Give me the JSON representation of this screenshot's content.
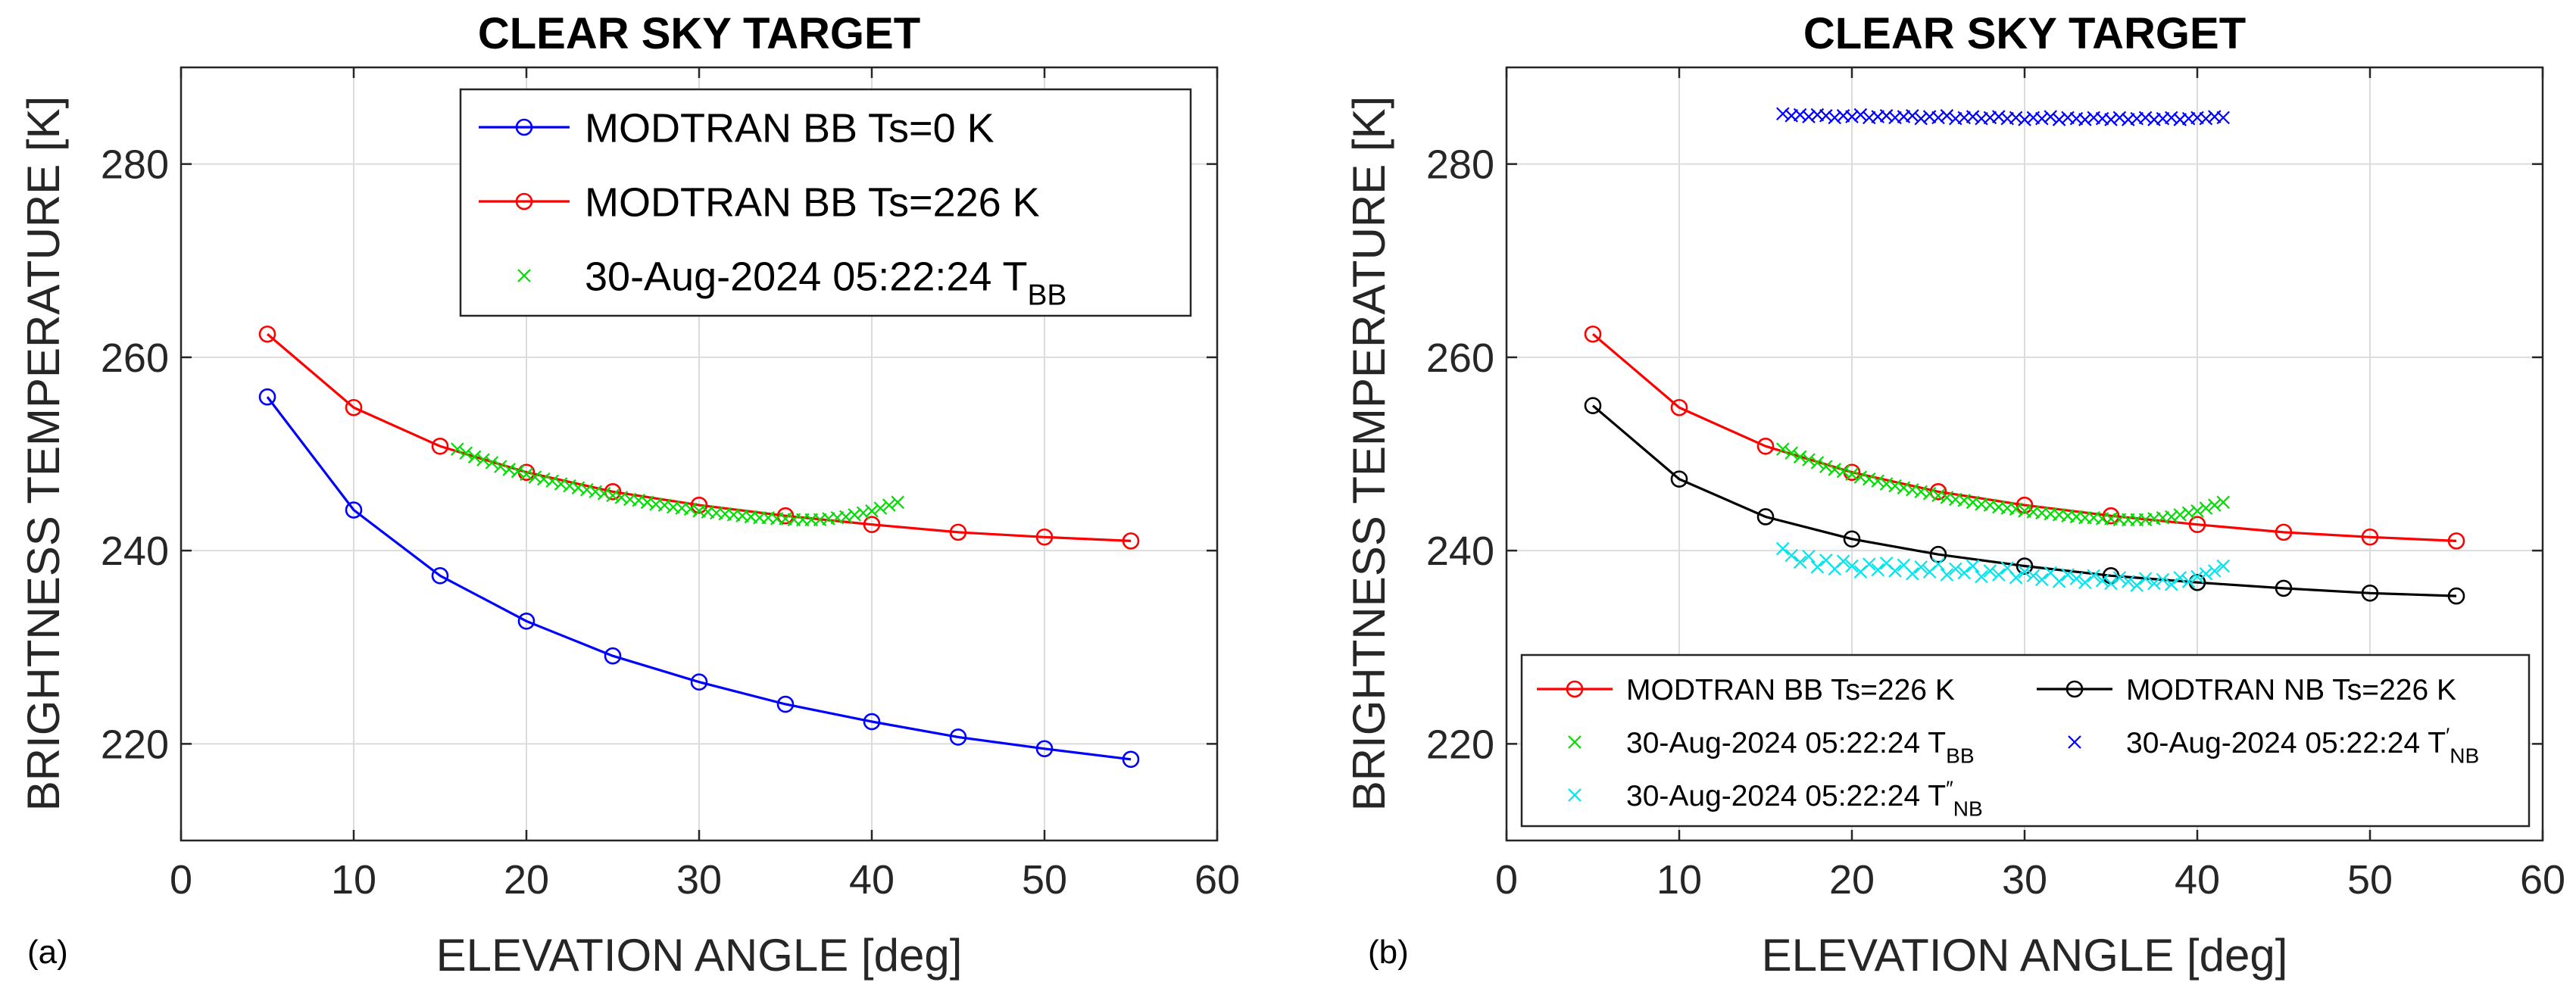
{
  "chart_data": [
    {
      "type": "line",
      "panel_label": "(a)",
      "title": "CLEAR SKY TARGET",
      "xlabel": "ELEVATION ANGLE [deg]",
      "ylabel": "BRIGHTNESS TEMPERATURE [K]",
      "xlim": [
        0,
        60
      ],
      "ylim": [
        210,
        290
      ],
      "xticks": [
        0,
        10,
        20,
        30,
        40,
        50,
        60
      ],
      "yticks": [
        220,
        240,
        260,
        280
      ],
      "grid": true,
      "legend_position": "top-right",
      "legend_columns": 1,
      "series": [
        {
          "name": "MODTRAN BB Ts=0 K",
          "legend_main": "MODTRAN BB Ts=0 K",
          "color": "#0000ff",
          "marker": "circle",
          "line": true,
          "x": [
            5,
            10,
            15,
            20,
            25,
            30,
            35,
            40,
            45,
            50,
            55
          ],
          "y": [
            255.9,
            244.2,
            237.4,
            232.7,
            229.1,
            226.4,
            224.1,
            222.3,
            220.7,
            219.5,
            218.4
          ]
        },
        {
          "name": "MODTRAN BB Ts=226 K",
          "legend_main": "MODTRAN BB Ts=226 K",
          "color": "#ff0000",
          "marker": "circle",
          "line": true,
          "x": [
            5,
            10,
            15,
            20,
            25,
            30,
            35,
            40,
            45,
            50,
            55
          ],
          "y": [
            262.4,
            254.8,
            250.8,
            248.1,
            246.1,
            244.7,
            243.6,
            242.7,
            241.9,
            241.4,
            241.0
          ]
        },
        {
          "name": "30-Aug-2024 05:22:24 T_BB",
          "legend_main": "30-Aug-2024 05:22:24 T",
          "legend_sub": "BB",
          "legend_sup": "",
          "color": "#00dd00",
          "marker": "x",
          "line": false,
          "x": [
            16.0,
            16.5,
            17.0,
            17.5,
            18.0,
            18.5,
            19.0,
            19.5,
            20.0,
            20.5,
            21.0,
            21.5,
            22.0,
            22.5,
            23.0,
            23.5,
            24.0,
            24.5,
            25.0,
            25.5,
            26.0,
            26.5,
            27.0,
            27.5,
            28.0,
            28.5,
            29.0,
            29.5,
            30.0,
            30.5,
            31.0,
            31.5,
            32.0,
            32.5,
            33.0,
            33.5,
            34.0,
            34.5,
            35.0,
            35.5,
            36.0,
            36.5,
            37.0,
            37.5,
            38.0,
            38.5,
            39.0,
            39.5,
            40.0,
            40.5,
            41.0,
            41.5
          ],
          "y": [
            250.5,
            250.1,
            249.7,
            249.4,
            249.1,
            248.7,
            248.4,
            248.2,
            247.9,
            247.6,
            247.4,
            247.2,
            246.9,
            246.7,
            246.5,
            246.3,
            246.1,
            245.9,
            245.7,
            245.5,
            245.3,
            245.2,
            245.0,
            244.8,
            244.7,
            244.5,
            244.4,
            244.3,
            244.1,
            244.0,
            243.9,
            243.8,
            243.7,
            243.6,
            243.5,
            243.4,
            243.4,
            243.3,
            243.3,
            243.2,
            243.2,
            243.2,
            243.2,
            243.3,
            243.4,
            243.5,
            243.7,
            243.9,
            244.1,
            244.4,
            244.7,
            245.0
          ]
        }
      ]
    },
    {
      "type": "line",
      "panel_label": "(b)",
      "title": "CLEAR SKY TARGET",
      "xlabel": "ELEVATION ANGLE [deg]",
      "ylabel": "BRIGHTNESS TEMPERATURE [K]",
      "xlim": [
        0,
        60
      ],
      "ylim": [
        210,
        290
      ],
      "xticks": [
        0,
        10,
        20,
        30,
        40,
        50,
        60
      ],
      "yticks": [
        220,
        240,
        260,
        280
      ],
      "grid": true,
      "legend_position": "bottom",
      "legend_columns": 2,
      "series": [
        {
          "name": "MODTRAN BB Ts=226 K",
          "legend_main": "MODTRAN BB Ts=226 K",
          "color": "#ff0000",
          "marker": "circle",
          "line": true,
          "x": [
            5,
            10,
            15,
            20,
            25,
            30,
            35,
            40,
            45,
            50,
            55
          ],
          "y": [
            262.4,
            254.8,
            250.8,
            248.1,
            246.1,
            244.7,
            243.6,
            242.7,
            241.9,
            241.4,
            241.0
          ]
        },
        {
          "name": "MODTRAN NB Ts=226 K",
          "legend_main": "MODTRAN NB Ts=226 K",
          "color": "#000000",
          "marker": "circle",
          "line": true,
          "x": [
            5,
            10,
            15,
            20,
            25,
            30,
            35,
            40,
            45,
            50,
            55
          ],
          "y": [
            255.0,
            247.4,
            243.5,
            241.2,
            239.6,
            238.4,
            237.4,
            236.7,
            236.1,
            235.6,
            235.3
          ]
        },
        {
          "name": "30-Aug-2024 05:22:24 T_BB",
          "legend_main": "30-Aug-2024 05:22:24 T",
          "legend_sub": "BB",
          "legend_sup": "",
          "color": "#00dd00",
          "marker": "x",
          "line": false,
          "x": [
            16.0,
            16.5,
            17.0,
            17.5,
            18.0,
            18.5,
            19.0,
            19.5,
            20.0,
            20.5,
            21.0,
            21.5,
            22.0,
            22.5,
            23.0,
            23.5,
            24.0,
            24.5,
            25.0,
            25.5,
            26.0,
            26.5,
            27.0,
            27.5,
            28.0,
            28.5,
            29.0,
            29.5,
            30.0,
            30.5,
            31.0,
            31.5,
            32.0,
            32.5,
            33.0,
            33.5,
            34.0,
            34.5,
            35.0,
            35.5,
            36.0,
            36.5,
            37.0,
            37.5,
            38.0,
            38.5,
            39.0,
            39.5,
            40.0,
            40.5,
            41.0,
            41.5
          ],
          "y": [
            250.5,
            250.1,
            249.7,
            249.4,
            249.1,
            248.7,
            248.4,
            248.2,
            247.9,
            247.6,
            247.4,
            247.2,
            246.9,
            246.7,
            246.5,
            246.3,
            246.1,
            245.9,
            245.7,
            245.5,
            245.3,
            245.2,
            245.0,
            244.8,
            244.7,
            244.5,
            244.4,
            244.3,
            244.1,
            244.0,
            243.9,
            243.8,
            243.7,
            243.6,
            243.5,
            243.4,
            243.4,
            243.3,
            243.3,
            243.2,
            243.2,
            243.2,
            243.2,
            243.3,
            243.4,
            243.5,
            243.7,
            243.9,
            244.1,
            244.4,
            244.7,
            245.0
          ]
        },
        {
          "name": "30-Aug-2024 05:22:24 T'_NB",
          "legend_main": "30-Aug-2024 05:22:24 T",
          "legend_sub": "NB",
          "legend_sup": "′",
          "color": "#0000ff",
          "marker": "x",
          "line": false,
          "x": [
            16.0,
            16.5,
            17.0,
            17.5,
            18.0,
            18.5,
            19.0,
            19.5,
            20.0,
            20.5,
            21.0,
            21.5,
            22.0,
            22.5,
            23.0,
            23.5,
            24.0,
            24.5,
            25.0,
            25.5,
            26.0,
            26.5,
            27.0,
            27.5,
            28.0,
            28.5,
            29.0,
            29.5,
            30.0,
            30.5,
            31.0,
            31.5,
            32.0,
            32.5,
            33.0,
            33.5,
            34.0,
            34.5,
            35.0,
            35.5,
            36.0,
            36.5,
            37.0,
            37.5,
            38.0,
            38.5,
            39.0,
            39.5,
            40.0,
            40.5,
            41.0,
            41.5
          ],
          "y": [
            285.2,
            285.0,
            285.1,
            284.9,
            285.1,
            285.0,
            284.8,
            285.0,
            284.9,
            285.1,
            284.8,
            284.9,
            285.0,
            284.8,
            284.9,
            285.0,
            284.7,
            284.9,
            284.8,
            285.0,
            284.7,
            284.8,
            284.9,
            284.7,
            284.8,
            284.9,
            284.7,
            284.8,
            284.6,
            284.8,
            284.7,
            284.9,
            284.6,
            284.8,
            284.7,
            284.6,
            284.8,
            284.7,
            284.6,
            284.8,
            284.6,
            284.7,
            284.8,
            284.6,
            284.7,
            284.8,
            284.6,
            284.7,
            284.8,
            284.7,
            284.9,
            284.8
          ]
        },
        {
          "name": "30-Aug-2024 05:22:24 T''_NB",
          "legend_main": "30-Aug-2024 05:22:24 T",
          "legend_sub": "NB",
          "legend_sup": "″",
          "color": "#00e5ee",
          "marker": "x",
          "line": false,
          "x": [
            16.0,
            16.5,
            17.0,
            17.5,
            18.0,
            18.5,
            19.0,
            19.5,
            20.0,
            20.5,
            21.0,
            21.5,
            22.0,
            22.5,
            23.0,
            23.5,
            24.0,
            24.5,
            25.0,
            25.5,
            26.0,
            26.5,
            27.0,
            27.5,
            28.0,
            28.5,
            29.0,
            29.5,
            30.0,
            30.5,
            31.0,
            31.5,
            32.0,
            32.5,
            33.0,
            33.5,
            34.0,
            34.5,
            35.0,
            35.5,
            36.0,
            36.5,
            37.0,
            37.5,
            38.0,
            38.5,
            39.0,
            39.5,
            40.0,
            40.5,
            41.0,
            41.5
          ],
          "y": [
            240.2,
            239.5,
            238.8,
            239.4,
            238.3,
            239.0,
            238.1,
            238.9,
            238.4,
            237.8,
            238.6,
            238.0,
            238.7,
            237.9,
            238.5,
            237.6,
            238.3,
            237.8,
            238.6,
            237.5,
            238.1,
            237.7,
            238.4,
            237.3,
            237.9,
            237.5,
            238.2,
            237.2,
            237.8,
            237.4,
            237.0,
            237.7,
            236.8,
            237.5,
            237.1,
            236.7,
            237.4,
            236.9,
            236.6,
            237.2,
            236.8,
            236.4,
            237.1,
            236.6,
            237.0,
            236.5,
            237.2,
            236.8,
            237.3,
            237.6,
            237.9,
            238.4
          ]
        }
      ]
    }
  ]
}
